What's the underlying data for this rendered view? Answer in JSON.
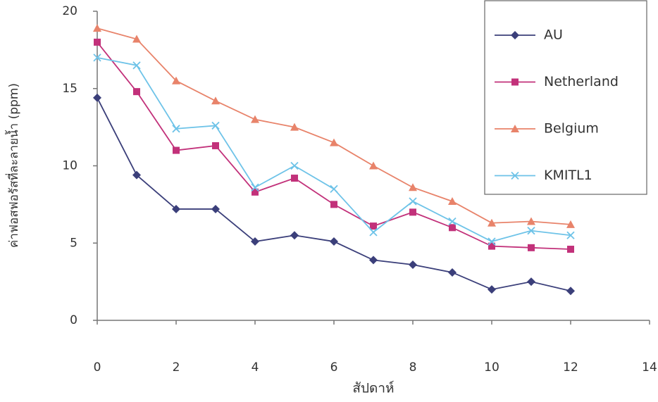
{
  "chart_data": {
    "type": "line",
    "x_label": "สัปดาห์",
    "y_label": "ค่าฟอสฟอรัสที่ละลายน้ำ (ppm)",
    "x": [
      0,
      1,
      2,
      3,
      4,
      5,
      6,
      7,
      8,
      9,
      10,
      11,
      12
    ],
    "series": [
      {
        "name": "AU",
        "color": "#3b3f7a",
        "marker": "diamond",
        "values": [
          14.4,
          9.4,
          7.2,
          7.2,
          5.1,
          5.5,
          5.1,
          3.9,
          3.6,
          3.1,
          2.0,
          2.5,
          1.9
        ]
      },
      {
        "name": "Netherland",
        "color": "#c2317a",
        "marker": "square",
        "values": [
          18.0,
          14.8,
          11.0,
          11.3,
          8.3,
          9.2,
          7.5,
          6.1,
          7.0,
          6.0,
          4.8,
          4.7,
          4.6
        ]
      },
      {
        "name": "Belgium",
        "color": "#e8836a",
        "marker": "triangle",
        "values": [
          18.9,
          18.2,
          15.5,
          14.2,
          13.0,
          12.5,
          11.5,
          10.0,
          8.6,
          7.7,
          6.3,
          6.4,
          6.2
        ]
      },
      {
        "name": "KMITL1",
        "color": "#6ec3e8",
        "marker": "x",
        "values": [
          17.0,
          16.5,
          12.4,
          12.6,
          8.6,
          10.0,
          8.5,
          5.7,
          7.7,
          6.4,
          5.1,
          5.8,
          5.5
        ]
      }
    ],
    "xlim": [
      0,
      14
    ],
    "xticks": [
      0,
      2,
      4,
      6,
      8,
      10,
      12,
      14
    ],
    "ylim": [
      0,
      20
    ],
    "yticks": [
      0,
      5,
      10,
      15,
      20
    ],
    "grid": false,
    "legend": "upper right"
  }
}
